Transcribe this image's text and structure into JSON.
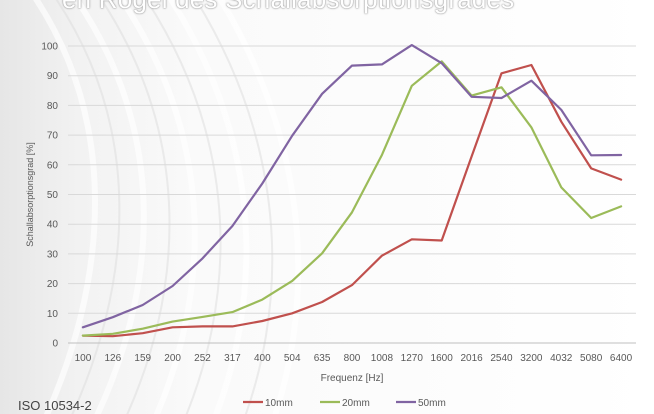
{
  "page": {
    "top_caption": "en Rogel des Schallabsorptionsgrades",
    "footer_note": "ISO 10534-2"
  },
  "chart_data": {
    "type": "line",
    "title": "",
    "xlabel": "Frequenz [Hz]",
    "ylabel": "Schallabsorptionsgrad [%]",
    "ylim": [
      0,
      100
    ],
    "yticks": [
      0,
      10,
      20,
      30,
      40,
      50,
      60,
      70,
      80,
      90,
      100
    ],
    "grid": true,
    "legend_position": "bottom",
    "categories": [
      "100",
      "126",
      "159",
      "200",
      "252",
      "317",
      "400",
      "504",
      "635",
      "800",
      "1008",
      "1270",
      "1600",
      "2016",
      "2540",
      "3200",
      "4032",
      "5080",
      "6400"
    ],
    "series": [
      {
        "name": "10mm",
        "color": "#c0504d",
        "values": [
          2.5,
          2.3,
          3.3,
          5.3,
          5.6,
          5.6,
          7.4,
          10.0,
          13.8,
          19.5,
          29.4,
          34.9,
          34.5,
          62.8,
          90.8,
          93.6,
          74.5,
          58.8,
          55.0
        ]
      },
      {
        "name": "20mm",
        "color": "#9bbb59",
        "values": [
          2.5,
          3.1,
          4.8,
          7.2,
          8.8,
          10.4,
          14.6,
          20.9,
          30.2,
          44.0,
          63.3,
          86.6,
          94.8,
          83.3,
          86.1,
          72.6,
          52.4,
          42.1,
          46.0
        ]
      },
      {
        "name": "50mm",
        "color": "#8064a2",
        "values": [
          5.3,
          8.7,
          12.8,
          19.2,
          28.5,
          39.4,
          53.7,
          69.8,
          83.9,
          93.4,
          93.8,
          100.3,
          94.2,
          82.9,
          82.5,
          88.3,
          78.5,
          63.2,
          63.3
        ]
      }
    ]
  }
}
